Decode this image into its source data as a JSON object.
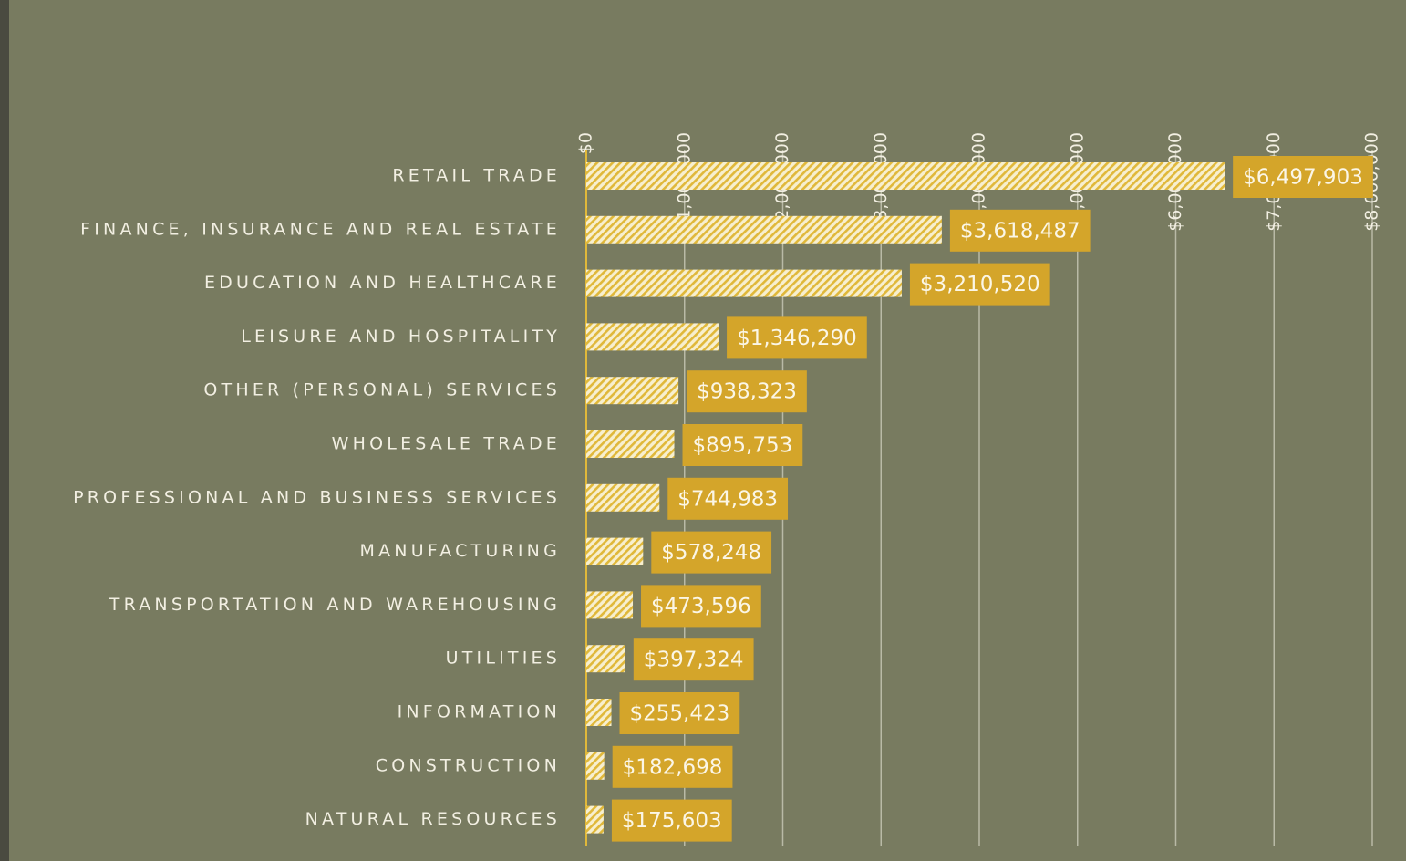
{
  "chart_data": {
    "type": "bar",
    "orientation": "horizontal",
    "categories": [
      "RETAIL TRADE",
      "FINANCE, INSURANCE AND REAL ESTATE",
      "EDUCATION AND HEALTHCARE",
      "LEISURE AND HOSPITALITY",
      "OTHER (PERSONAL) SERVICES",
      "WHOLESALE TRADE",
      "PROFESSIONAL AND BUSINESS SERVICES",
      "MANUFACTURING",
      "TRANSPORTATION AND WAREHOUSING",
      "UTILITIES",
      "INFORMATION",
      "CONSTRUCTION",
      "NATURAL RESOURCES"
    ],
    "values": [
      6497903,
      3618487,
      3210520,
      1346290,
      938323,
      895753,
      744983,
      578248,
      473596,
      397324,
      255423,
      182698,
      175603
    ],
    "value_labels": [
      "$6,497,903",
      "$3,618,487",
      "$3,210,520",
      "$1,346,290",
      "$938,323",
      "$895,753",
      "$744,983",
      "$578,248",
      "$473,596",
      "$397,324",
      "$255,423",
      "$182,698",
      "$175,603"
    ],
    "color": "#e0b83a",
    "label_color": "#d4a52a",
    "xlim": [
      0,
      8000000
    ],
    "xticks": [
      {
        "value": 0,
        "label": "$0"
      },
      {
        "value": 1000000,
        "label": "$1,000,000"
      },
      {
        "value": 2000000,
        "label": "$2,000,000"
      },
      {
        "value": 3000000,
        "label": "$3,000,000"
      },
      {
        "value": 4000000,
        "label": "$4,000,000"
      },
      {
        "value": 5000000,
        "label": "$5,000,000"
      },
      {
        "value": 6000000,
        "label": "$6,000,000"
      },
      {
        "value": 7000000,
        "label": "$7,000,000"
      },
      {
        "value": 8000000,
        "label": "$8,000,000"
      }
    ],
    "grid": true
  }
}
